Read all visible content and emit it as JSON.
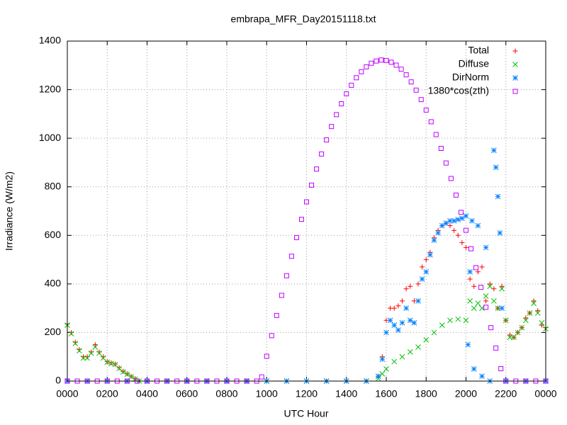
{
  "chart_data": {
    "type": "scatter",
    "title": "embrapa_MFR_Day20151118.txt",
    "x_label": "UTC Hour",
    "y_label": "Irradiance (W/m2)",
    "xlim": [
      0,
      24
    ],
    "ylim": [
      0,
      1400
    ],
    "xticks": [
      {
        "value": 0,
        "label": "0000"
      },
      {
        "value": 2,
        "label": "0200"
      },
      {
        "value": 4,
        "label": "0400"
      },
      {
        "value": 6,
        "label": "0600"
      },
      {
        "value": 8,
        "label": "0800"
      },
      {
        "value": 10,
        "label": "1000"
      },
      {
        "value": 12,
        "label": "1200"
      },
      {
        "value": 14,
        "label": "1400"
      },
      {
        "value": 16,
        "label": "1600"
      },
      {
        "value": 18,
        "label": "1800"
      },
      {
        "value": 20,
        "label": "2000"
      },
      {
        "value": 22,
        "label": "2200"
      },
      {
        "value": 24,
        "label": "0000"
      }
    ],
    "yticks": [
      0,
      200,
      400,
      600,
      800,
      1000,
      1200,
      1400
    ],
    "grid": true,
    "legend": "top right",
    "series": [
      {
        "name": "Total",
        "color": "#ff0000",
        "marker": "plus",
        "x": [
          0,
          0.2,
          0.4,
          0.6,
          0.8,
          1.0,
          1.2,
          1.4,
          1.6,
          1.8,
          2.0,
          2.2,
          2.4,
          2.6,
          2.8,
          3.0,
          3.2,
          3.4,
          3.6,
          4,
          5,
          6,
          7,
          8,
          9,
          10,
          11,
          12,
          13,
          14,
          15,
          15.6,
          15.8,
          16.0,
          16.2,
          16.4,
          16.6,
          16.8,
          17.0,
          17.2,
          17.4,
          17.6,
          17.8,
          18.0,
          18.2,
          18.4,
          18.6,
          18.8,
          19.0,
          19.2,
          19.4,
          19.6,
          19.8,
          20.0,
          20.2,
          20.4,
          20.6,
          20.8,
          21.0,
          21.2,
          21.4,
          21.6,
          21.8,
          22.0,
          22.2,
          22.4,
          22.6,
          22.8,
          23.0,
          23.2,
          23.4,
          23.6,
          23.8,
          24.0
        ],
        "values": [
          235,
          200,
          160,
          130,
          100,
          100,
          120,
          150,
          120,
          100,
          80,
          75,
          70,
          55,
          40,
          30,
          20,
          10,
          0,
          0,
          0,
          0,
          0,
          0,
          0,
          0,
          0,
          0,
          0,
          0,
          0,
          20,
          100,
          250,
          300,
          300,
          310,
          330,
          380,
          390,
          330,
          400,
          470,
          500,
          530,
          590,
          620,
          640,
          650,
          640,
          620,
          600,
          570,
          550,
          420,
          390,
          450,
          470,
          330,
          400,
          380,
          300,
          390,
          250,
          190,
          180,
          200,
          220,
          260,
          280,
          330,
          290,
          230,
          220
        ]
      },
      {
        "name": "Diffuse",
        "color": "#00c000",
        "marker": "cross",
        "x": [
          0,
          0.2,
          0.4,
          0.6,
          0.8,
          1.0,
          1.2,
          1.4,
          1.6,
          1.8,
          2.0,
          2.2,
          2.4,
          2.6,
          2.8,
          3.0,
          3.2,
          3.4,
          3.6,
          4,
          5,
          6,
          7,
          8,
          9,
          10,
          11,
          12,
          13,
          14,
          15,
          15.6,
          15.8,
          16.0,
          16.4,
          16.8,
          17.2,
          17.6,
          18.0,
          18.4,
          18.8,
          19.2,
          19.6,
          20.0,
          20.2,
          20.4,
          20.6,
          20.8,
          21.0,
          21.2,
          21.4,
          21.6,
          21.8,
          22.0,
          22.2,
          22.4,
          22.6,
          22.8,
          23.0,
          23.2,
          23.4,
          23.6,
          23.8,
          24.0
        ],
        "values": [
          230,
          195,
          155,
          125,
          95,
          95,
          115,
          140,
          115,
          95,
          78,
          72,
          68,
          52,
          38,
          28,
          18,
          8,
          0,
          0,
          0,
          0,
          0,
          0,
          0,
          0,
          0,
          0,
          0,
          0,
          0,
          10,
          30,
          50,
          80,
          100,
          120,
          140,
          170,
          200,
          230,
          250,
          255,
          250,
          330,
          300,
          320,
          300,
          350,
          390,
          330,
          300,
          380,
          250,
          180,
          180,
          200,
          220,
          250,
          280,
          320,
          280,
          240,
          215
        ]
      },
      {
        "name": "DirNorm",
        "color": "#0080ff",
        "marker": "star",
        "x": [
          0,
          1,
          2,
          3,
          4,
          5,
          6,
          7,
          8,
          9,
          10,
          11,
          12,
          13,
          14,
          15,
          15.6,
          15.8,
          16.0,
          16.2,
          16.4,
          16.6,
          16.8,
          17.0,
          17.2,
          17.4,
          17.6,
          17.8,
          18.0,
          18.2,
          18.4,
          18.6,
          18.8,
          19.0,
          19.2,
          19.4,
          19.6,
          19.8,
          20.0,
          20.1,
          20.2,
          20.3,
          20.4,
          20.6,
          20.8,
          21.0,
          21.2,
          21.4,
          21.5,
          21.6,
          21.7,
          21.8,
          22.0,
          23,
          24
        ],
        "values": [
          0,
          0,
          0,
          0,
          0,
          0,
          0,
          0,
          0,
          0,
          0,
          0,
          0,
          0,
          0,
          0,
          20,
          90,
          200,
          250,
          230,
          210,
          240,
          300,
          250,
          240,
          330,
          420,
          450,
          520,
          580,
          610,
          640,
          650,
          660,
          660,
          665,
          670,
          680,
          150,
          450,
          660,
          50,
          640,
          20,
          550,
          0,
          950,
          880,
          760,
          610,
          300,
          0,
          0,
          0
        ]
      },
      {
        "name": "1380*cos(zth)",
        "color": "#c000ff",
        "marker": "square",
        "x": [
          0,
          0.5,
          1,
          1.5,
          2,
          2.5,
          3,
          3.5,
          4,
          4.5,
          5,
          5.5,
          6,
          6.5,
          7,
          7.5,
          8,
          8.5,
          9,
          9.5,
          9.75,
          10,
          10.25,
          10.5,
          10.75,
          11,
          11.25,
          11.5,
          11.75,
          12,
          12.25,
          12.5,
          12.75,
          13,
          13.25,
          13.5,
          13.75,
          14,
          14.25,
          14.5,
          14.75,
          15,
          15.25,
          15.5,
          15.75,
          16,
          16.25,
          16.5,
          16.75,
          17,
          17.25,
          17.5,
          17.75,
          18,
          18.25,
          18.5,
          18.75,
          19,
          19.25,
          19.5,
          19.75,
          20,
          20.25,
          20.5,
          20.75,
          21,
          21.25,
          21.5,
          21.75,
          22,
          22.5,
          23,
          23.5,
          24
        ],
        "values": [
          0,
          0,
          0,
          0,
          0,
          0,
          0,
          0,
          0,
          0,
          0,
          0,
          0,
          0,
          0,
          0,
          0,
          0,
          0,
          0,
          17,
          102,
          187,
          270,
          353,
          434,
          514,
          591,
          666,
          738,
          807,
          873,
          935,
          993,
          1048,
          1097,
          1142,
          1183,
          1218,
          1249,
          1274,
          1294,
          1309,
          1318,
          1322,
          1320,
          1313,
          1301,
          1284,
          1261,
          1232,
          1198,
          1159,
          1116,
          1068,
          1015,
          958,
          898,
          834,
          766,
          695,
          621,
          545,
          467,
          386,
          304,
          220,
          136,
          51,
          0,
          0,
          0,
          0,
          0
        ]
      }
    ]
  }
}
